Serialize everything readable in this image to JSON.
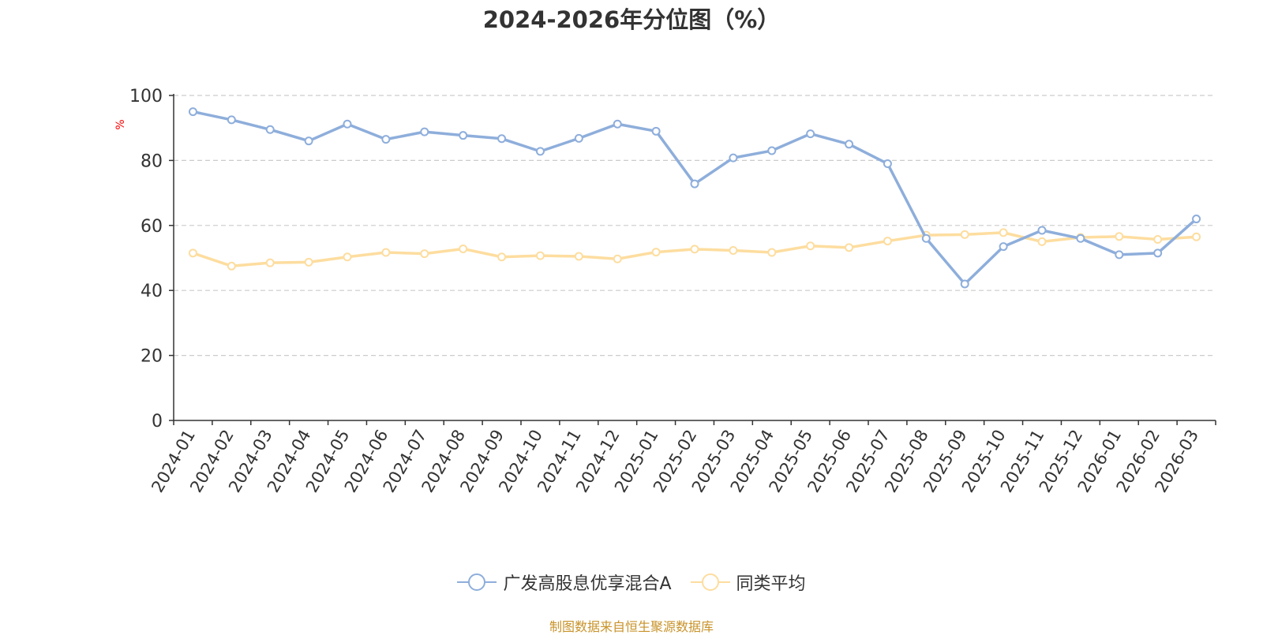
{
  "chart_data": {
    "type": "line",
    "title": "2024-2026年分位图（%）",
    "ylabel": "%",
    "xlabel": "",
    "ylim": [
      0,
      100
    ],
    "yticks": [
      0,
      20,
      40,
      60,
      80,
      100
    ],
    "grid": true,
    "legend_position": "bottom",
    "categories": [
      "2024-01",
      "2024-02",
      "2024-03",
      "2024-04",
      "2024-05",
      "2024-06",
      "2024-07",
      "2024-08",
      "2024-09",
      "2024-10",
      "2024-11",
      "2024-12",
      "2025-01",
      "2025-02",
      "2025-03",
      "2025-04",
      "2025-05",
      "2025-06",
      "2025-07",
      "2025-08",
      "2025-09",
      "2025-10",
      "2025-11",
      "2025-12",
      "2026-01",
      "2026-02",
      "2026-03"
    ],
    "series": [
      {
        "name": "广发高股息优享混合A",
        "color": "#8eaedb",
        "values": [
          95,
          92.5,
          89.5,
          86,
          91.2,
          86.5,
          88.8,
          87.7,
          86.7,
          82.8,
          86.8,
          91.2,
          89,
          72.8,
          80.8,
          83,
          88.2,
          85,
          79,
          56,
          42,
          53.5,
          58.5,
          56,
          51,
          51.5,
          62
        ]
      },
      {
        "name": "同类平均",
        "color": "#fddd9f",
        "values": [
          51.5,
          47.5,
          48.5,
          48.7,
          50.3,
          51.7,
          51.3,
          52.8,
          50.3,
          50.7,
          50.5,
          49.7,
          51.8,
          52.7,
          52.3,
          51.7,
          53.7,
          53.2,
          55.2,
          57,
          57.2,
          57.8,
          55,
          56.3,
          56.6,
          55.7,
          56.5
        ]
      }
    ]
  },
  "source_note": "制图数据来自恒生聚源数据库",
  "colors": {
    "axis": "#333333",
    "grid": "#cccccc",
    "ylabel": "#ff0000",
    "source": "#c8932a"
  }
}
